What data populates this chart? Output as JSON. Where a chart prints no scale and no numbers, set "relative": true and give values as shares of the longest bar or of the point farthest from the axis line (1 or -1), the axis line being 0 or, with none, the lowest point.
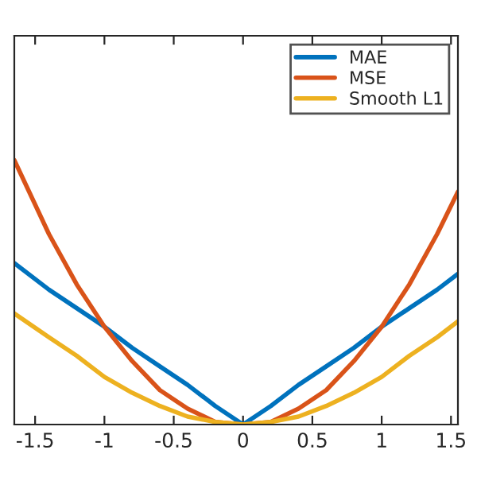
{
  "chart_data": {
    "type": "line",
    "relative": true,
    "x": [
      -1.65,
      -1.4,
      -1.2,
      -1,
      -0.8,
      -0.6,
      -0.4,
      -0.2,
      0,
      0.2,
      0.4,
      0.6,
      0.8,
      1,
      1.2,
      1.4,
      1.55
    ],
    "xlim": [
      -1.65,
      1.55
    ],
    "xticks": [
      -1.5,
      -1,
      -0.5,
      0,
      0.5,
      1,
      1.5
    ],
    "series": [
      {
        "name": "MAE",
        "color": "#0072bd",
        "values": [
          0.61,
          0.51,
          0.44,
          0.37,
          0.29,
          0.22,
          0.15,
          0.07,
          0,
          0.07,
          0.15,
          0.22,
          0.29,
          0.37,
          0.44,
          0.51,
          0.57
        ]
      },
      {
        "name": "MSE",
        "color": "#d95319",
        "values": [
          1,
          0.72,
          0.53,
          0.37,
          0.24,
          0.13,
          0.06,
          0.01,
          0,
          0.01,
          0.06,
          0.13,
          0.24,
          0.37,
          0.53,
          0.72,
          0.88
        ]
      },
      {
        "name": "Smooth L1",
        "color": "#edb120",
        "values": [
          0.42,
          0.33,
          0.26,
          0.18,
          0.12,
          0.07,
          0.03,
          0.01,
          0,
          0.01,
          0.03,
          0.07,
          0.12,
          0.18,
          0.26,
          0.33,
          0.39
        ]
      }
    ],
    "legend": "top right",
    "grid": false,
    "tick_labels": "x",
    "marker": "none",
    "line_style": "solid"
  }
}
